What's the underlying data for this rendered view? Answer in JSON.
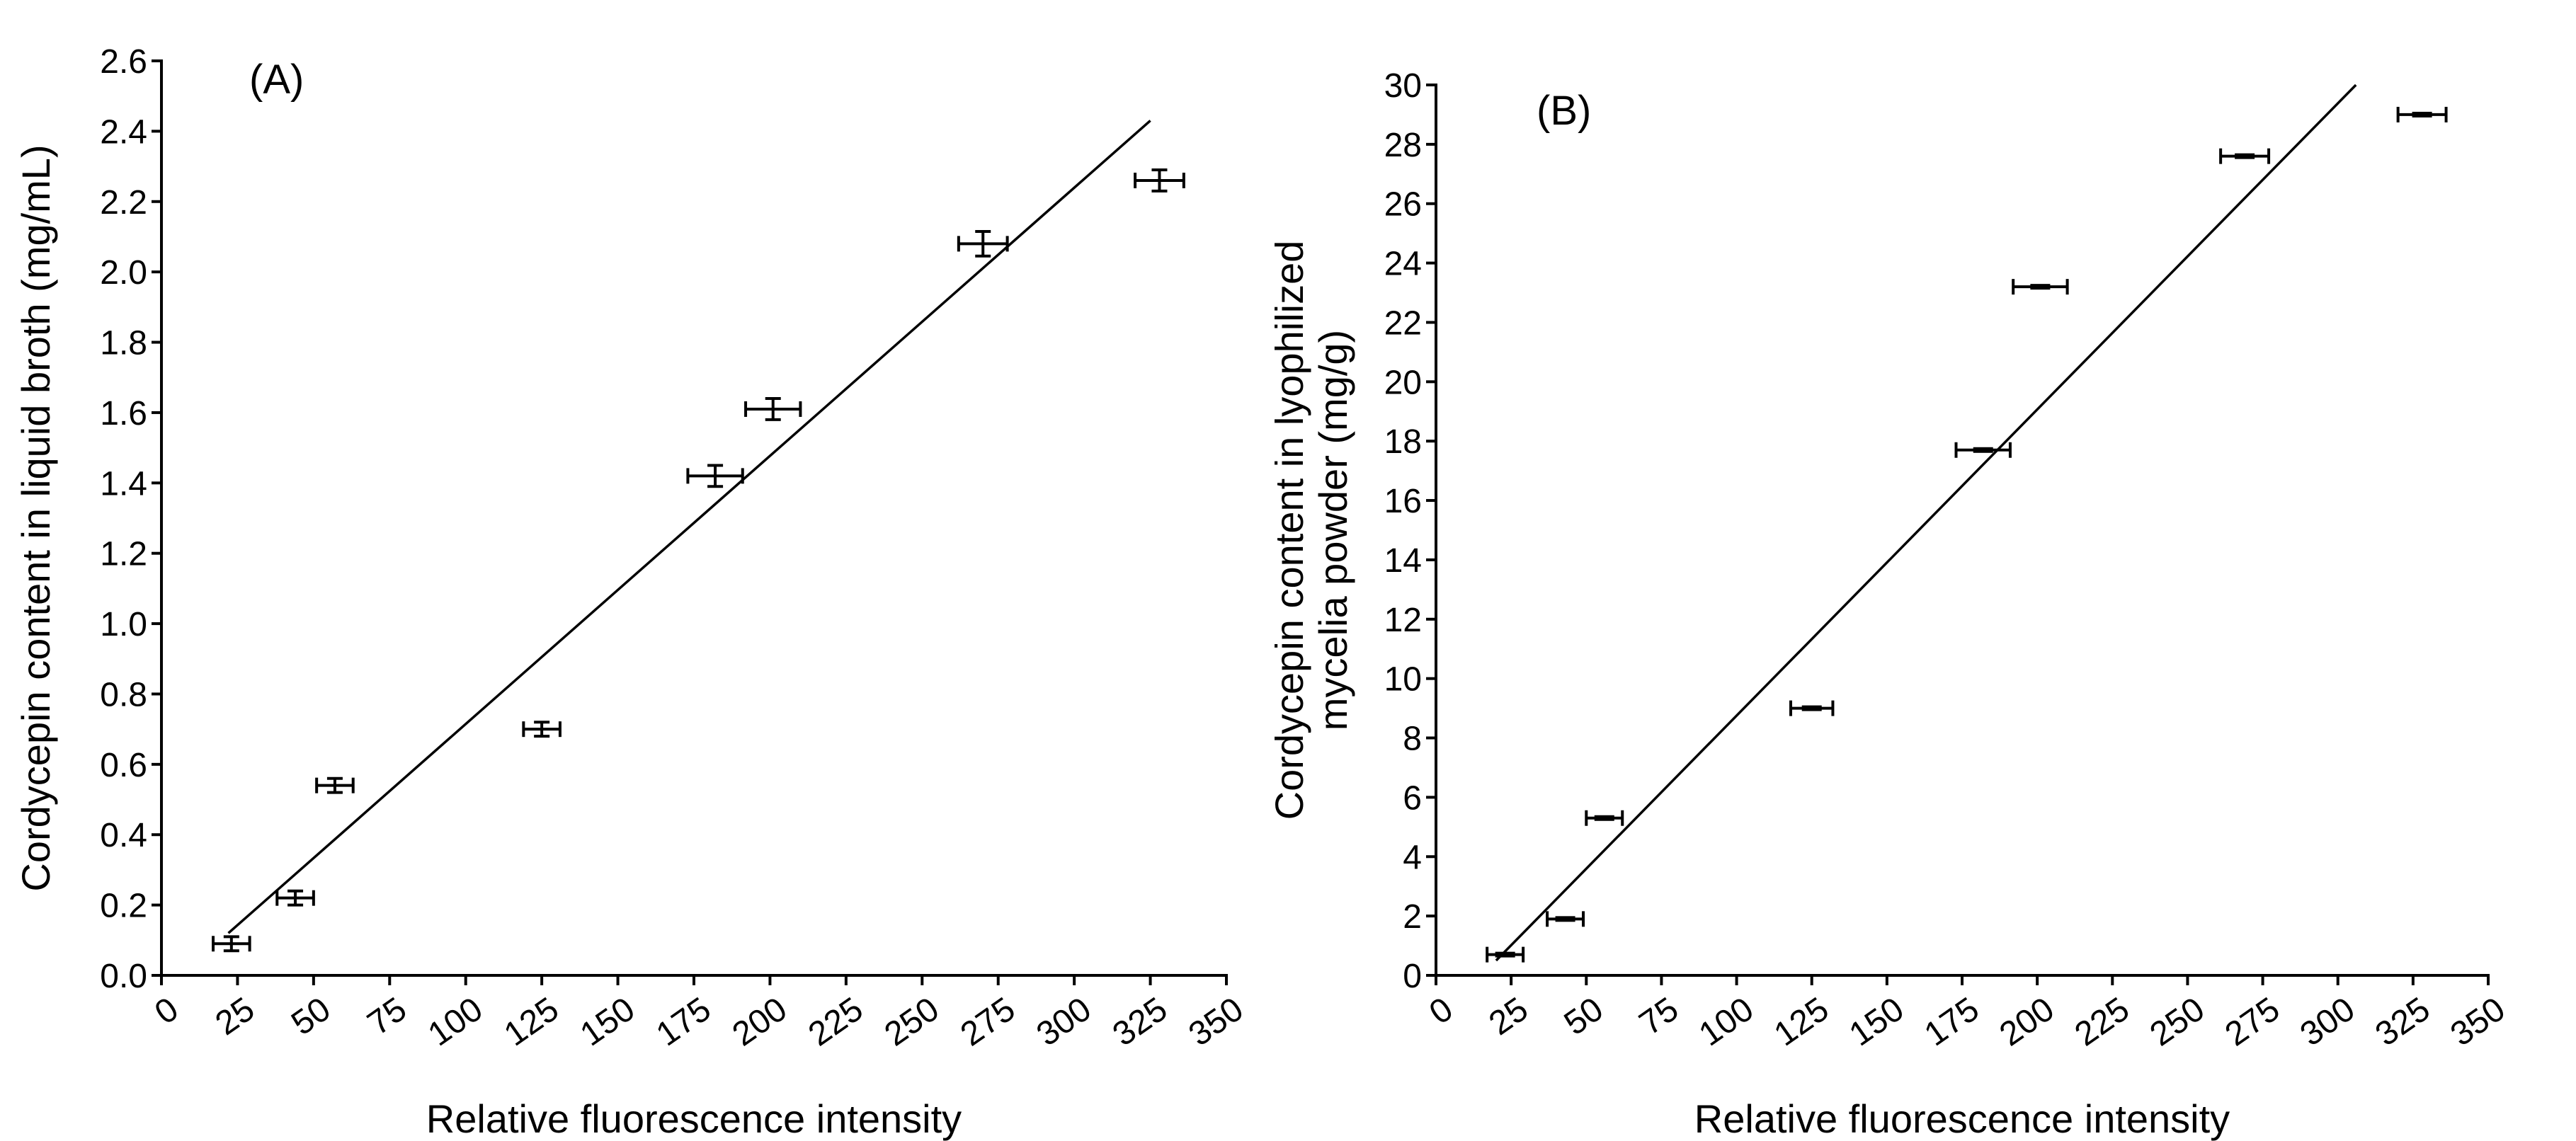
{
  "chart_data": [
    {
      "type": "scatter",
      "panel_label": "(A)",
      "xlabel": "Relative fluorescence intensity",
      "ylabel": "Cordycepin content in liquid broth (mg/mL)",
      "xlim": [
        0,
        350
      ],
      "ylim": [
        0,
        2.6
      ],
      "xticks": [
        0,
        25,
        50,
        75,
        100,
        125,
        150,
        175,
        200,
        225,
        250,
        275,
        300,
        325,
        350
      ],
      "yticks": [
        0.0,
        0.2,
        0.4,
        0.6,
        0.8,
        1.0,
        1.2,
        1.4,
        1.6,
        1.8,
        2.0,
        2.2,
        2.4,
        2.6
      ],
      "ytick_labels": [
        "0.0",
        "0.2",
        "0.4",
        "0.6",
        "0.8",
        "1.0",
        "1.2",
        "1.4",
        "1.6",
        "1.8",
        "2.0",
        "2.2",
        "2.4",
        "2.6"
      ],
      "points": [
        {
          "x": 23,
          "y": 0.09,
          "xerr": 6,
          "yerr": 0.02
        },
        {
          "x": 44,
          "y": 0.22,
          "xerr": 6,
          "yerr": 0.02
        },
        {
          "x": 57,
          "y": 0.54,
          "xerr": 6,
          "yerr": 0.02
        },
        {
          "x": 125,
          "y": 0.7,
          "xerr": 6,
          "yerr": 0.02
        },
        {
          "x": 182,
          "y": 1.42,
          "xerr": 9,
          "yerr": 0.03
        },
        {
          "x": 201,
          "y": 1.61,
          "xerr": 9,
          "yerr": 0.03
        },
        {
          "x": 270,
          "y": 2.08,
          "xerr": 8,
          "yerr": 0.035
        },
        {
          "x": 328,
          "y": 2.26,
          "xerr": 8,
          "yerr": 0.03
        }
      ],
      "fit_line": {
        "x": [
          22,
          325
        ],
        "y": [
          0.12,
          2.43
        ]
      }
    },
    {
      "type": "scatter",
      "panel_label": "(B)",
      "xlabel": "Relative fluorescence intensity",
      "ylabel_lines": [
        "Cordycepin content in lyophilized",
        "mycelia powder (mg/g)"
      ],
      "xlim": [
        0,
        350
      ],
      "ylim": [
        0,
        30
      ],
      "xticks": [
        0,
        25,
        50,
        75,
        100,
        125,
        150,
        175,
        200,
        225,
        250,
        275,
        300,
        325,
        350
      ],
      "yticks": [
        0,
        2,
        4,
        6,
        8,
        10,
        12,
        14,
        16,
        18,
        20,
        22,
        24,
        26,
        28,
        30
      ],
      "ytick_labels": [
        "0",
        "2",
        "4",
        "6",
        "8",
        "10",
        "12",
        "14",
        "16",
        "18",
        "20",
        "22",
        "24",
        "26",
        "28",
        "30"
      ],
      "points": [
        {
          "x": 23,
          "y": 0.7,
          "xerr": 6
        },
        {
          "x": 43,
          "y": 1.9,
          "xerr": 6
        },
        {
          "x": 56,
          "y": 5.3,
          "xerr": 6
        },
        {
          "x": 125,
          "y": 9.0,
          "xerr": 7
        },
        {
          "x": 182,
          "y": 17.7,
          "xerr": 9
        },
        {
          "x": 201,
          "y": 23.2,
          "xerr": 9
        },
        {
          "x": 269,
          "y": 27.6,
          "xerr": 8
        },
        {
          "x": 328,
          "y": 29.0,
          "xerr": 8
        }
      ],
      "fit_line": {
        "x": [
          20,
          306
        ],
        "y": [
          0.5,
          30
        ]
      }
    }
  ]
}
